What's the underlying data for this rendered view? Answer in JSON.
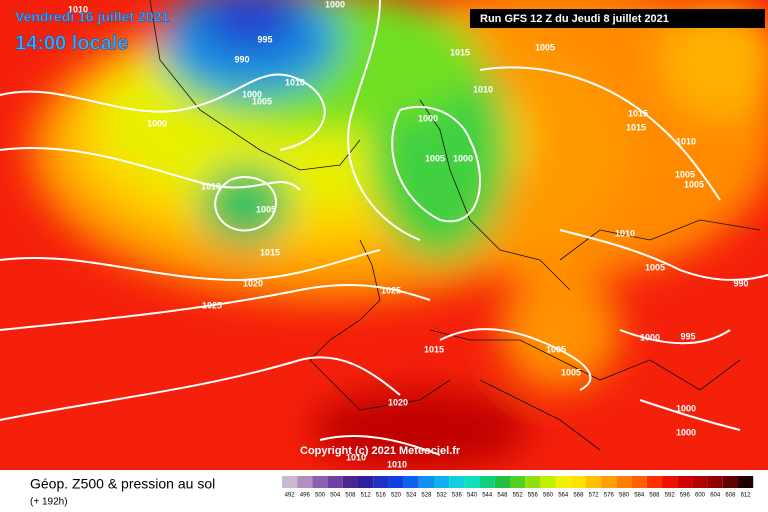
{
  "header": {
    "date": "Vendredi 16 juillet 2021",
    "time": "14:00 locale"
  },
  "run_info": "Run GFS 12 Z du Jeudi 8 juillet 2021",
  "copyright": "Copyright (c) 2021 Meteociel.fr",
  "footer": {
    "title": "Géop. Z500 & pression au sol",
    "forecast": "(+ 192h)"
  },
  "isobar_labels": [
    1010,
    995,
    990,
    1000,
    1015,
    1005,
    1010,
    1005,
    1000,
    1000,
    1010,
    1000,
    1005,
    1000,
    1015,
    1015,
    1010,
    1005,
    1005,
    1010,
    1005,
    1015,
    1010,
    1020,
    1025,
    1005,
    990,
    1025,
    1000,
    995,
    1015,
    1005,
    1005,
    1020,
    1000,
    1000,
    1010,
    1010
  ],
  "colorbar": {
    "values": [
      492,
      496,
      500,
      504,
      508,
      512,
      516,
      520,
      524,
      528,
      532,
      536,
      540,
      544,
      548,
      552,
      556,
      560,
      564,
      568,
      572,
      576,
      580,
      584,
      588,
      592,
      596,
      600,
      604,
      608,
      612
    ]
  }
}
